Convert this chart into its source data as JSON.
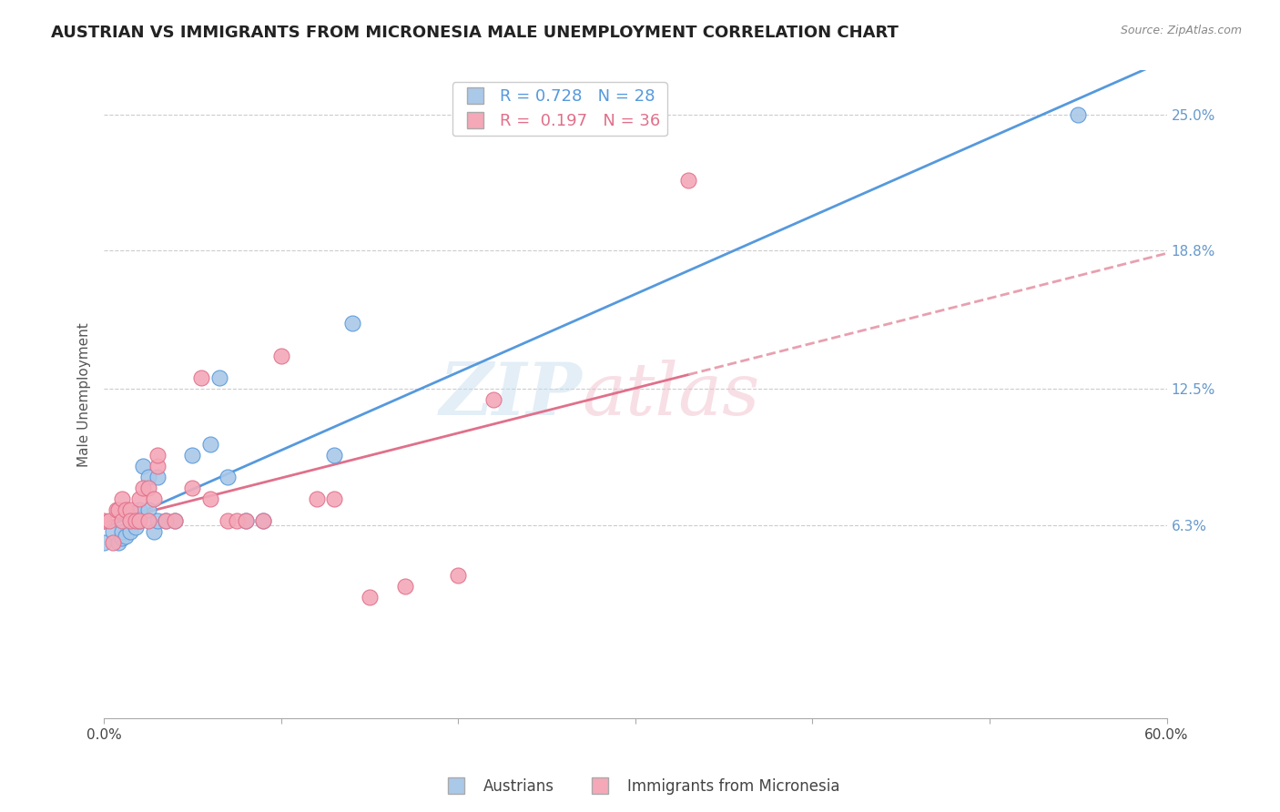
{
  "title": "AUSTRIAN VS IMMIGRANTS FROM MICRONESIA MALE UNEMPLOYMENT CORRELATION CHART",
  "source": "Source: ZipAtlas.com",
  "ylabel": "Male Unemployment",
  "y_tick_vals": [
    0.063,
    0.125,
    0.188,
    0.25
  ],
  "y_tick_labels": [
    "6.3%",
    "12.5%",
    "18.8%",
    "25.0%"
  ],
  "xlim": [
    0.0,
    0.6
  ],
  "ylim": [
    -0.025,
    0.27
  ],
  "austrians_x": [
    0.0,
    0.005,
    0.008,
    0.01,
    0.01,
    0.012,
    0.015,
    0.015,
    0.018,
    0.02,
    0.02,
    0.022,
    0.025,
    0.025,
    0.028,
    0.03,
    0.03,
    0.035,
    0.04,
    0.05,
    0.06,
    0.065,
    0.07,
    0.08,
    0.09,
    0.13,
    0.14,
    0.55
  ],
  "austrians_y": [
    0.055,
    0.06,
    0.055,
    0.057,
    0.06,
    0.058,
    0.065,
    0.06,
    0.062,
    0.065,
    0.07,
    0.09,
    0.07,
    0.085,
    0.06,
    0.085,
    0.065,
    0.065,
    0.065,
    0.095,
    0.1,
    0.13,
    0.085,
    0.065,
    0.065,
    0.095,
    0.155,
    0.25
  ],
  "micronesia_x": [
    0.0,
    0.003,
    0.005,
    0.007,
    0.008,
    0.01,
    0.01,
    0.012,
    0.015,
    0.015,
    0.018,
    0.02,
    0.02,
    0.022,
    0.025,
    0.025,
    0.028,
    0.03,
    0.03,
    0.035,
    0.04,
    0.05,
    0.055,
    0.06,
    0.07,
    0.075,
    0.08,
    0.09,
    0.1,
    0.12,
    0.13,
    0.15,
    0.17,
    0.2,
    0.22,
    0.33
  ],
  "micronesia_y": [
    0.065,
    0.065,
    0.055,
    0.07,
    0.07,
    0.065,
    0.075,
    0.07,
    0.07,
    0.065,
    0.065,
    0.075,
    0.065,
    0.08,
    0.08,
    0.065,
    0.075,
    0.09,
    0.095,
    0.065,
    0.065,
    0.08,
    0.13,
    0.075,
    0.065,
    0.065,
    0.065,
    0.065,
    0.14,
    0.075,
    0.075,
    0.03,
    0.035,
    0.04,
    0.12,
    0.22
  ],
  "austrians_color": "#aac8e8",
  "micronesia_color": "#f4a8b8",
  "blue_line_color": "#5599dd",
  "pink_line_color": "#e0708a",
  "pink_dashed_color": "#e8a0b0",
  "background_color": "#ffffff",
  "grid_color": "#cccccc",
  "title_fontsize": 13,
  "axis_label_fontsize": 11,
  "tick_fontsize": 11,
  "right_tick_color": "#6699cc",
  "watermark_zip_color": "#c8dff0",
  "watermark_atlas_color": "#f0c0cc"
}
